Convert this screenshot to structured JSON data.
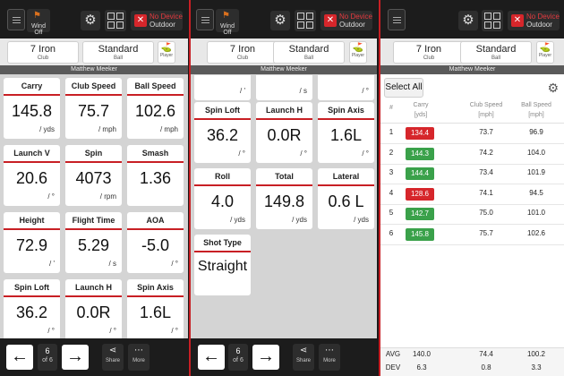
{
  "colors": {
    "accent": "#c81f24",
    "good": "#3aa14a",
    "bad": "#d6262b"
  },
  "topbar": {
    "wind_label": "Wind Off",
    "device_title": "No Device",
    "device_mode": "Outdoor"
  },
  "clubbar": {
    "club": "7 Iron",
    "club_sub": "Club",
    "ball": "Standard",
    "ball_sub": "Ball",
    "player_sub": "Player",
    "player_name": "Matthew Meeker"
  },
  "panel1": {
    "tiles": [
      {
        "label": "Carry",
        "value": "145.8",
        "unit": "/ yds"
      },
      {
        "label": "Club Speed",
        "value": "75.7",
        "unit": "/ mph"
      },
      {
        "label": "Ball Speed",
        "value": "102.6",
        "unit": "/ mph"
      },
      {
        "label": "Launch V",
        "value": "20.6",
        "unit": "/ °"
      },
      {
        "label": "Spin",
        "value": "4073",
        "unit": "/ rpm"
      },
      {
        "label": "Smash",
        "value": "1.36",
        "unit": ""
      },
      {
        "label": "Height",
        "value": "72.9",
        "unit": "/ '"
      },
      {
        "label": "Flight Time",
        "value": "5.29",
        "unit": "/ s"
      },
      {
        "label": "AOA",
        "value": "-5.0",
        "unit": "/ °"
      },
      {
        "label": "Spin Loft",
        "value": "36.2",
        "unit": "/ °"
      },
      {
        "label": "Launch H",
        "value": "0.0R",
        "unit": "/ °"
      },
      {
        "label": "Spin Axis",
        "value": "1.6L",
        "unit": "/ °"
      }
    ],
    "page_num": "6",
    "page_of": "of 6"
  },
  "panel2": {
    "top_units": [
      "/ '",
      "/ s",
      "/ °"
    ],
    "tiles": [
      {
        "label": "Spin Loft",
        "value": "36.2",
        "unit": "/ °"
      },
      {
        "label": "Launch H",
        "value": "0.0R",
        "unit": "/ °"
      },
      {
        "label": "Spin Axis",
        "value": "1.6L",
        "unit": "/ °"
      },
      {
        "label": "Roll",
        "value": "4.0",
        "unit": "/ yds"
      },
      {
        "label": "Total",
        "value": "149.8",
        "unit": "/ yds"
      },
      {
        "label": "Lateral",
        "value": "0.6 L",
        "unit": "/ yds"
      },
      {
        "label": "Shot Type",
        "value": "Straight",
        "unit": ""
      }
    ],
    "page_num": "6",
    "page_of": "of 6"
  },
  "toolbar": {
    "share": "Share",
    "more": "More"
  },
  "table": {
    "select_all": "Select All",
    "headers": [
      {
        "name": "#",
        "unit": ""
      },
      {
        "name": "Carry",
        "unit": "[yds]"
      },
      {
        "name": "Club Speed",
        "unit": "[mph]"
      },
      {
        "name": "Ball Speed",
        "unit": "[mph]"
      }
    ],
    "rows": [
      {
        "num": "1",
        "carry": "134.4",
        "status": "bad",
        "club": "73.7",
        "ball": "96.9"
      },
      {
        "num": "2",
        "carry": "144.3",
        "status": "good",
        "club": "74.2",
        "ball": "104.0"
      },
      {
        "num": "3",
        "carry": "144.4",
        "status": "good",
        "club": "73.4",
        "ball": "101.9"
      },
      {
        "num": "4",
        "carry": "128.6",
        "status": "bad",
        "club": "74.1",
        "ball": "94.5"
      },
      {
        "num": "5",
        "carry": "142.7",
        "status": "good",
        "club": "75.0",
        "ball": "101.0"
      },
      {
        "num": "6",
        "carry": "145.8",
        "status": "good",
        "club": "75.7",
        "ball": "102.6"
      }
    ],
    "avg": {
      "label": "AVG",
      "carry": "140.0",
      "club": "74.4",
      "ball": "100.2"
    },
    "dev": {
      "label": "DEV",
      "carry": "6.3",
      "club": "0.8",
      "ball": "3.3"
    }
  }
}
